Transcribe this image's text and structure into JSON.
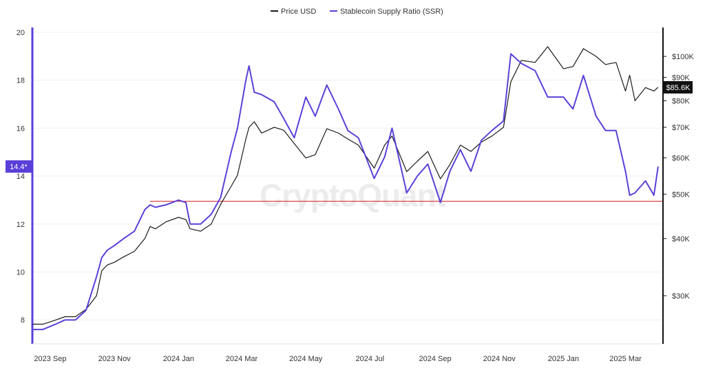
{
  "watermark": "CryptoQuant",
  "colors": {
    "price": "#1a1a1a",
    "ssr": "#5b3fd9",
    "support_line": "#d64545",
    "grid": "#eeeeee"
  },
  "chart_data": {
    "type": "line",
    "title": "",
    "legend": {
      "placement": "top-center",
      "entries": [
        "Price USD",
        "Stablecoin Supply Ratio (SSR)"
      ]
    },
    "x_ticks": [
      "2023 Sep",
      "2023 Nov",
      "2024 Jan",
      "2024 Mar",
      "2024 May",
      "2024 Jul",
      "2024 Sep",
      "2024 Nov",
      "2025 Jan",
      "2025 Mar"
    ],
    "x_range": [
      "2023-08-15",
      "2025-04-05"
    ],
    "y_left": {
      "label": "",
      "ylim": [
        7,
        20.2
      ],
      "ticks": [
        "8",
        "10",
        "12",
        "14",
        "16",
        "18",
        "20"
      ]
    },
    "y_right": {
      "label": "",
      "scale": "log",
      "ticks": [
        "$30K",
        "$40K",
        "$50K",
        "$60K",
        "$70K",
        "$80K",
        "$90K",
        "$100K"
      ]
    },
    "current_labels": {
      "ssr": "14.4*",
      "price": "$85.6K"
    },
    "horizontal_line": {
      "axis": "left",
      "value": 12.95
    },
    "grid": true,
    "series": [
      {
        "name": "Stablecoin Supply Ratio (SSR)",
        "axis": "left",
        "x": [
          "2023-08-15",
          "2023-08-25",
          "2023-09-05",
          "2023-09-15",
          "2023-09-25",
          "2023-10-05",
          "2023-10-15",
          "2023-10-20",
          "2023-10-25",
          "2023-11-01",
          "2023-11-10",
          "2023-11-20",
          "2023-11-30",
          "2023-12-05",
          "2023-12-10",
          "2023-12-20",
          "2024-01-01",
          "2024-01-08",
          "2024-01-12",
          "2024-01-22",
          "2024-02-01",
          "2024-02-10",
          "2024-02-20",
          "2024-02-26",
          "2024-03-05",
          "2024-03-08",
          "2024-03-13",
          "2024-03-20",
          "2024-04-01",
          "2024-04-10",
          "2024-04-20",
          "2024-05-01",
          "2024-05-10",
          "2024-05-21",
          "2024-06-01",
          "2024-06-10",
          "2024-06-20",
          "2024-07-05",
          "2024-07-15",
          "2024-07-22",
          "2024-08-05",
          "2024-08-15",
          "2024-08-25",
          "2024-09-06",
          "2024-09-15",
          "2024-09-25",
          "2024-10-05",
          "2024-10-15",
          "2024-10-25",
          "2024-11-05",
          "2024-11-12",
          "2024-11-22",
          "2024-12-05",
          "2024-12-17",
          "2025-01-01",
          "2025-01-10",
          "2025-01-20",
          "2025-02-01",
          "2025-02-10",
          "2025-02-20",
          "2025-03-01",
          "2025-03-05",
          "2025-03-10",
          "2025-03-20",
          "2025-03-28",
          "2025-04-01"
        ],
        "values": [
          7.6,
          7.6,
          7.8,
          8.0,
          8.0,
          8.4,
          9.8,
          10.6,
          10.9,
          11.1,
          11.4,
          11.7,
          12.6,
          12.8,
          12.7,
          12.8,
          13.0,
          12.9,
          12.0,
          12.0,
          12.4,
          13.1,
          15.0,
          16.0,
          18.0,
          18.6,
          17.5,
          17.4,
          17.1,
          16.4,
          15.6,
          17.3,
          16.5,
          17.8,
          16.8,
          15.9,
          15.6,
          13.9,
          14.8,
          16.0,
          13.3,
          14.0,
          14.5,
          12.9,
          14.2,
          15.1,
          14.2,
          15.5,
          15.9,
          16.3,
          19.1,
          18.7,
          18.4,
          17.3,
          17.3,
          16.8,
          18.2,
          16.5,
          15.9,
          15.9,
          14.2,
          13.2,
          13.3,
          13.8,
          13.2,
          14.4
        ]
      },
      {
        "name": "Price USD",
        "axis": "right",
        "x": [
          "2023-08-15",
          "2023-08-25",
          "2023-09-05",
          "2023-09-15",
          "2023-09-25",
          "2023-10-05",
          "2023-10-15",
          "2023-10-20",
          "2023-10-25",
          "2023-11-01",
          "2023-11-10",
          "2023-11-20",
          "2023-11-30",
          "2023-12-05",
          "2023-12-10",
          "2023-12-20",
          "2024-01-01",
          "2024-01-08",
          "2024-01-12",
          "2024-01-22",
          "2024-02-01",
          "2024-02-10",
          "2024-02-20",
          "2024-02-26",
          "2024-03-05",
          "2024-03-08",
          "2024-03-13",
          "2024-03-20",
          "2024-04-01",
          "2024-04-10",
          "2024-04-20",
          "2024-05-01",
          "2024-05-10",
          "2024-05-21",
          "2024-06-01",
          "2024-06-10",
          "2024-06-20",
          "2024-07-05",
          "2024-07-15",
          "2024-07-22",
          "2024-08-05",
          "2024-08-15",
          "2024-08-25",
          "2024-09-06",
          "2024-09-15",
          "2024-09-25",
          "2024-10-05",
          "2024-10-15",
          "2024-10-25",
          "2024-11-05",
          "2024-11-12",
          "2024-11-22",
          "2024-12-05",
          "2024-12-17",
          "2025-01-01",
          "2025-01-10",
          "2025-01-20",
          "2025-02-01",
          "2025-02-10",
          "2025-02-20",
          "2025-03-01",
          "2025-03-05",
          "2025-03-10",
          "2025-03-20",
          "2025-03-28",
          "2025-04-01"
        ],
        "values": [
          26000,
          26000,
          26500,
          27000,
          27000,
          28000,
          30000,
          34000,
          35000,
          35500,
          36500,
          37500,
          40000,
          42500,
          42000,
          43500,
          44500,
          44000,
          42000,
          41500,
          43000,
          47500,
          52000,
          55000,
          66000,
          70000,
          72000,
          68000,
          70000,
          69000,
          64500,
          60000,
          61000,
          69500,
          68000,
          66000,
          64000,
          57000,
          64000,
          67000,
          56000,
          59000,
          62000,
          54000,
          58000,
          64000,
          62000,
          65000,
          67000,
          70000,
          88000,
          98000,
          97000,
          105000,
          94000,
          95000,
          104000,
          100000,
          96000,
          97000,
          84000,
          91000,
          80000,
          85500,
          84000,
          85600
        ]
      }
    ]
  }
}
